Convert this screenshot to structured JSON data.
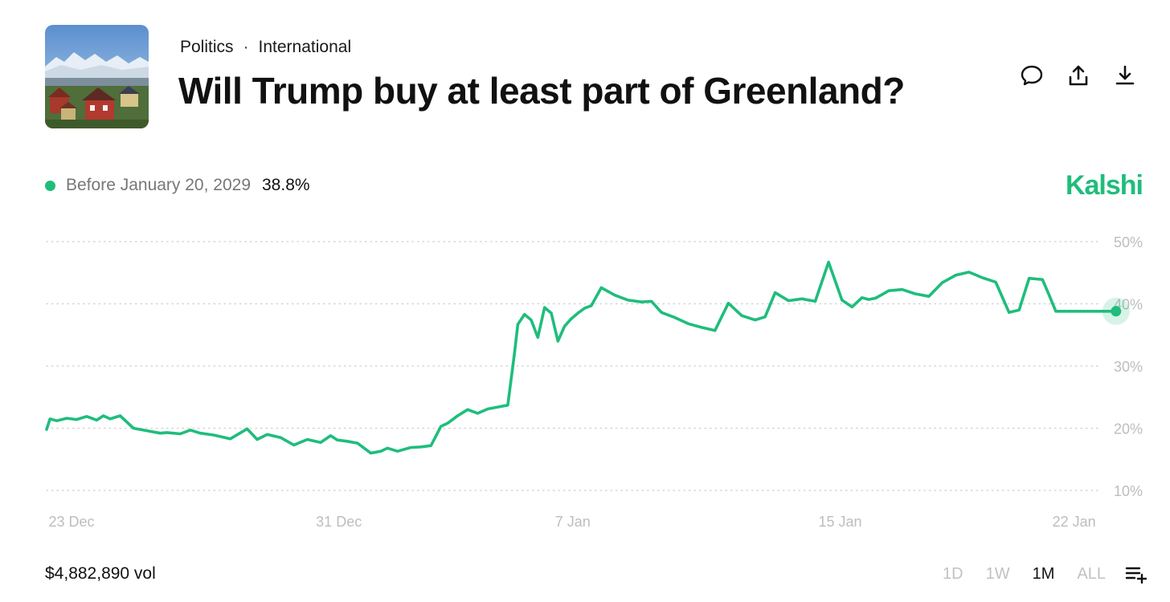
{
  "header": {
    "breadcrumb": [
      "Politics",
      "International"
    ],
    "breadcrumb_separator": "·",
    "title": "Will Trump buy at least part of Greenland?",
    "thumbnail": "greenland-village-photo",
    "actions": [
      {
        "name": "comment-button",
        "icon": "speech-bubble-icon"
      },
      {
        "name": "share-button",
        "icon": "upload-icon"
      },
      {
        "name": "download-button",
        "icon": "download-icon"
      }
    ]
  },
  "legend": {
    "label": "Before January 20, 2029",
    "value": "38.8%",
    "color": "#1fbd7c"
  },
  "brand": {
    "name": "Kalshi",
    "color": "#1fbd7c"
  },
  "footer": {
    "volume": "$4,882,890 vol",
    "ranges": [
      "1D",
      "1W",
      "1M",
      "ALL"
    ],
    "active_range": "1M",
    "menu_icon": "playlist-add-icon"
  },
  "chart_data": {
    "type": "line",
    "title": "Will Trump buy at least part of Greenland?",
    "series": [
      {
        "name": "Before January 20, 2029",
        "color": "#1fbd7c",
        "last_value": 38.8,
        "x": [
          0,
          0.1,
          0.3,
          0.6,
          0.9,
          1.2,
          1.5,
          1.7,
          1.9,
          2.2,
          2.6,
          3.0,
          3.4,
          3.6,
          4.0,
          4.3,
          4.6,
          5.0,
          5.5,
          6.0,
          6.3,
          6.6,
          7.0,
          7.4,
          7.8,
          8.2,
          8.5,
          8.7,
          9.0,
          9.3,
          9.7,
          10.0,
          10.2,
          10.5,
          10.9,
          11.2,
          11.5,
          11.8,
          12.0,
          12.3,
          12.6,
          12.9,
          13.2,
          13.5,
          13.8,
          14.0,
          14.1,
          14.3,
          14.5,
          14.7,
          14.9,
          15.1,
          15.3,
          15.5,
          15.7,
          15.9,
          16.1,
          16.3,
          16.6,
          17.0,
          17.4,
          17.8,
          18.1,
          18.4,
          18.8,
          19.2,
          19.6,
          20.0,
          20.4,
          20.8,
          21.2,
          21.5,
          21.8,
          22.2,
          22.6,
          23.0,
          23.4,
          23.8,
          24.1,
          24.4,
          24.6,
          24.8,
          25.0,
          25.2,
          25.6,
          26.0,
          26.4,
          26.8,
          27.2,
          27.6,
          28.0,
          28.4,
          28.8,
          29.1,
          29.4,
          29.6,
          29.8,
          30.0,
          30.2,
          30.4,
          30.6,
          30.9,
          31.2,
          31.5,
          31.8,
          32.0
        ],
        "y": [
          19.8,
          21.5,
          21.2,
          21.6,
          21.4,
          21.9,
          21.3,
          22.0,
          21.5,
          22.0,
          20.0,
          19.6,
          19.2,
          19.3,
          19.1,
          19.7,
          19.2,
          18.9,
          18.3,
          19.9,
          18.2,
          19.0,
          18.5,
          17.3,
          18.2,
          17.7,
          18.8,
          18.1,
          17.9,
          17.6,
          16.0,
          16.3,
          16.8,
          16.3,
          16.9,
          17.0,
          17.2,
          20.3,
          20.8,
          22.0,
          23.0,
          22.4,
          23.1,
          23.4,
          23.7,
          32.0,
          36.7,
          38.3,
          37.4,
          34.6,
          39.4,
          38.5,
          34.0,
          36.4,
          37.6,
          38.5,
          39.3,
          39.7,
          42.6,
          41.4,
          40.6,
          40.3,
          40.4,
          38.6,
          37.8,
          36.8,
          36.2,
          35.7,
          40.1,
          38.1,
          37.4,
          37.9,
          41.8,
          40.5,
          40.8,
          40.4,
          46.7,
          40.6,
          39.5,
          41.0,
          40.7,
          40.9,
          41.5,
          42.1,
          42.3,
          41.6,
          41.2,
          43.4,
          44.6,
          45.1,
          44.2,
          43.5,
          38.6,
          39.0,
          44.1,
          44.0,
          43.9,
          41.4,
          38.8,
          38.8,
          38.8,
          38.8,
          38.8,
          38.8,
          38.8,
          38.8
        ]
      }
    ],
    "x_ticks": [
      {
        "label": "23 Dec",
        "value": 0
      },
      {
        "label": "31 Dec",
        "value": 8
      },
      {
        "label": "7 Jan",
        "value": 15
      },
      {
        "label": "15 Jan",
        "value": 23
      },
      {
        "label": "22 Jan",
        "value": 30
      }
    ],
    "y_ticks": [
      10,
      20,
      30,
      40,
      50
    ],
    "y_tick_format": "%",
    "xlim": [
      0,
      31.5
    ],
    "ylim": [
      10,
      50
    ],
    "grid": true,
    "legend_position": "top-left"
  }
}
